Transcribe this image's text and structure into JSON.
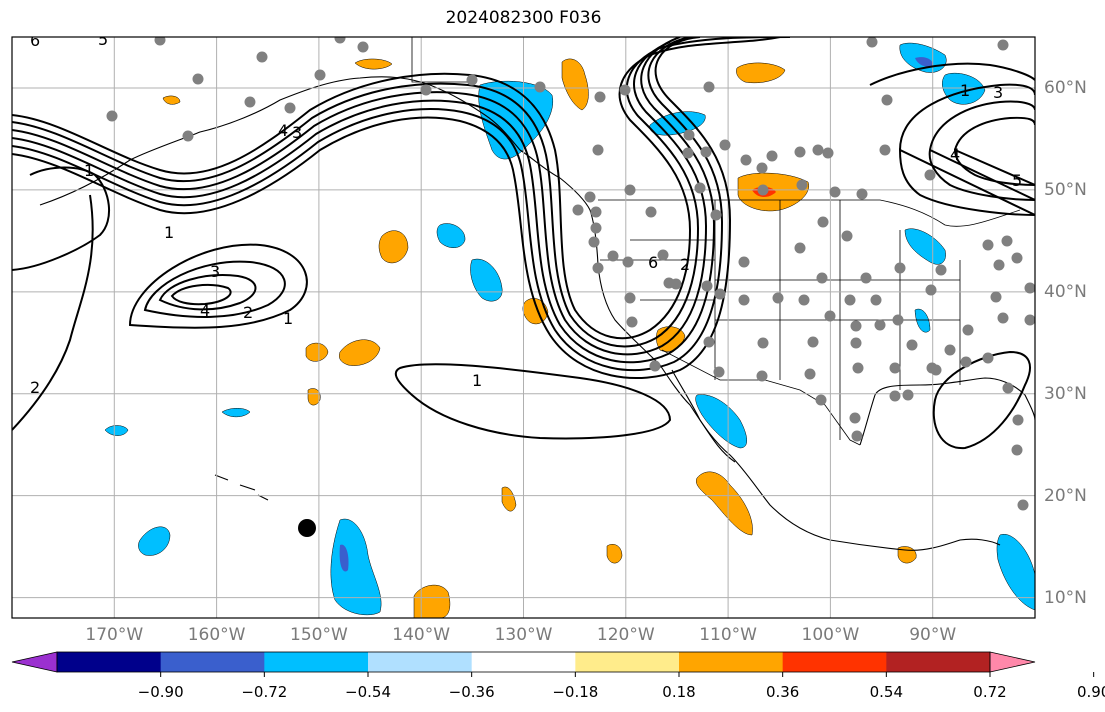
{
  "title": "2024082300 F036",
  "map": {
    "lon_range": [
      -180,
      -80
    ],
    "lat_range": [
      8,
      65
    ],
    "lon_ticks": [
      {
        "value": -170,
        "label": "170°W"
      },
      {
        "value": -160,
        "label": "160°W"
      },
      {
        "value": -150,
        "label": "150°W"
      },
      {
        "value": -140,
        "label": "140°W"
      },
      {
        "value": -130,
        "label": "130°W"
      },
      {
        "value": -120,
        "label": "120°W"
      },
      {
        "value": -110,
        "label": "110°W"
      },
      {
        "value": -100,
        "label": "100°W"
      },
      {
        "value": -90,
        "label": "90°W"
      }
    ],
    "lat_ticks": [
      {
        "value": 60,
        "label": "60°N"
      },
      {
        "value": 50,
        "label": "50°N"
      },
      {
        "value": 40,
        "label": "40°N"
      },
      {
        "value": 30,
        "label": "30°N"
      },
      {
        "value": 20,
        "label": "20°N"
      },
      {
        "value": 10,
        "label": "10°N"
      }
    ],
    "grid": true,
    "contour_labels": [
      "6",
      "5",
      "4",
      "3",
      "1",
      "3",
      "4",
      "2",
      "1",
      "1",
      "1",
      "2",
      "1",
      "3",
      "4",
      "5",
      "6",
      "2"
    ]
  },
  "colorbar": {
    "extend": "both",
    "colors": [
      "#9b30d0",
      "#00008b",
      "#3a5fcd",
      "#00bfff",
      "#b0e0ff",
      "#ffffff",
      "#ffec8b",
      "#ffa500",
      "#ff3300",
      "#b22222",
      "#ff88aa"
    ],
    "ticks": [
      "−0.90",
      "−0.72",
      "−0.54",
      "−0.36",
      "−0.18",
      "0.18",
      "0.36",
      "0.54",
      "0.72",
      "0.90"
    ]
  },
  "colors": {
    "land_line": "#000000",
    "contour": "#000000",
    "station": "#808080",
    "grid": "#b0b0b0"
  }
}
